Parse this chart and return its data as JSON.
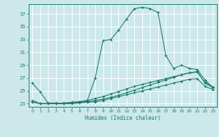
{
  "xlabel": "Humidex (Indice chaleur)",
  "background_color": "#cce8ea",
  "grid_color": "#ffffff",
  "line_color": "#1a7a6e",
  "xlim": [
    -0.5,
    23.5
  ],
  "ylim": [
    22.5,
    38.5
  ],
  "xticks": [
    0,
    1,
    2,
    3,
    4,
    5,
    6,
    7,
    8,
    9,
    10,
    11,
    12,
    13,
    14,
    15,
    16,
    17,
    18,
    19,
    20,
    21,
    22,
    23
  ],
  "yticks": [
    23,
    25,
    27,
    29,
    31,
    33,
    35,
    37
  ],
  "lines": [
    {
      "x": [
        0,
        1,
        2,
        3,
        4,
        5,
        6,
        7,
        8,
        9,
        10,
        11,
        12,
        13,
        14,
        15,
        16,
        17,
        18,
        19,
        20,
        21,
        22,
        23
      ],
      "y": [
        26.2,
        24.8,
        23.1,
        23.1,
        23.0,
        23.2,
        23.3,
        23.5,
        27.0,
        32.8,
        33.0,
        34.5,
        36.2,
        37.8,
        38.0,
        37.8,
        37.2,
        30.5,
        28.5,
        29.0,
        28.5,
        28.3,
        26.7,
        25.5
      ]
    },
    {
      "x": [
        0,
        1,
        2,
        3,
        4,
        5,
        6,
        7,
        8,
        9,
        10,
        11,
        12,
        13,
        14,
        15,
        16,
        17,
        18,
        19,
        20,
        21,
        22,
        23
      ],
      "y": [
        23.5,
        23.0,
        23.0,
        23.0,
        23.0,
        23.1,
        23.2,
        23.3,
        23.5,
        23.7,
        24.0,
        24.3,
        24.7,
        25.1,
        25.5,
        25.9,
        26.3,
        26.7,
        27.1,
        27.5,
        27.8,
        28.0,
        26.2,
        25.5
      ]
    },
    {
      "x": [
        0,
        1,
        2,
        3,
        4,
        5,
        6,
        7,
        8,
        9,
        10,
        11,
        12,
        13,
        14,
        15,
        16,
        17,
        18,
        19,
        20,
        21,
        22,
        23
      ],
      "y": [
        23.3,
        23.0,
        23.0,
        23.0,
        23.1,
        23.2,
        23.3,
        23.5,
        23.8,
        24.1,
        24.5,
        24.9,
        25.3,
        25.7,
        26.0,
        26.3,
        26.6,
        26.9,
        27.2,
        27.5,
        27.8,
        27.9,
        26.3,
        25.6
      ]
    },
    {
      "x": [
        0,
        1,
        2,
        3,
        4,
        5,
        6,
        7,
        8,
        9,
        10,
        11,
        12,
        13,
        14,
        15,
        16,
        17,
        18,
        19,
        20,
        21,
        22,
        23
      ],
      "y": [
        23.2,
        23.0,
        23.0,
        23.0,
        23.0,
        23.0,
        23.1,
        23.2,
        23.3,
        23.5,
        23.8,
        24.1,
        24.4,
        24.7,
        25.0,
        25.3,
        25.6,
        25.9,
        26.2,
        26.5,
        26.8,
        26.9,
        25.7,
        25.2
      ]
    }
  ]
}
